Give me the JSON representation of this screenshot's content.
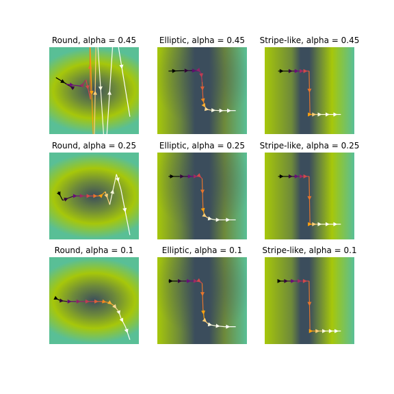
{
  "figure": {
    "colormap_background": [
      "#3b4d5c",
      "#6e8a3a",
      "#a6c70a",
      "#59bf96"
    ],
    "trajectory_gradient": [
      "#000000",
      "#6a0e7a",
      "#d2484a",
      "#fca10f",
      "#fcfbe0",
      "#ffffff"
    ]
  },
  "chart_data": [
    {
      "type": "line",
      "title": "Round, alpha = 0.45",
      "surface": "round",
      "xlim": [
        -1,
        1
      ],
      "ylim": [
        -1,
        1
      ],
      "x": [
        -0.85,
        -0.45,
        -0.62,
        -0.28,
        -0.18,
        -0.08,
        -0.1,
        0.0,
        0.05,
        0.25,
        0.45,
        0.8
      ],
      "y": [
        0.3,
        0.05,
        0.15,
        0.1,
        0.25,
        -0.2,
        1.4,
        -1.6,
        1.6,
        -1.6,
        1.6,
        -0.6
      ]
    },
    {
      "type": "line",
      "title": "Elliptic, alpha = 0.45",
      "surface": "elliptic",
      "xlim": [
        -1,
        1
      ],
      "ylim": [
        -1,
        1
      ],
      "x": [
        -0.75,
        -0.4,
        -0.2,
        -0.06,
        -0.02,
        0.0,
        0.02,
        0.05,
        0.1,
        0.2,
        0.4,
        0.55,
        0.75
      ],
      "y": [
        0.45,
        0.46,
        0.46,
        0.45,
        0.4,
        0.2,
        -0.2,
        -0.35,
        -0.43,
        -0.45,
        -0.46,
        -0.46,
        -0.46
      ]
    },
    {
      "type": "line",
      "title": "Stripe-like, alpha = 0.45",
      "surface": "stripe",
      "xlim": [
        -1,
        1
      ],
      "ylim": [
        -1,
        1
      ],
      "x": [
        -0.7,
        -0.45,
        -0.3,
        -0.18,
        -0.08,
        -0.01,
        0.01,
        0.1,
        0.2,
        0.35,
        0.55,
        0.7
      ],
      "y": [
        0.45,
        0.45,
        0.45,
        0.45,
        0.45,
        0.45,
        -0.55,
        -0.55,
        -0.55,
        -0.55,
        -0.55,
        -0.55
      ]
    },
    {
      "type": "line",
      "title": "Round, alpha = 0.25",
      "surface": "round",
      "xlim": [
        -1,
        1
      ],
      "ylim": [
        -1,
        1
      ],
      "x": [
        -0.8,
        -0.7,
        -0.45,
        -0.3,
        -0.15,
        0.0,
        0.15,
        0.25,
        0.35,
        0.5,
        0.6,
        0.8
      ],
      "y": [
        0.1,
        -0.1,
        0.0,
        0.0,
        0.0,
        0.0,
        0.0,
        0.1,
        -0.2,
        0.5,
        0.15,
        -0.9
      ]
    },
    {
      "type": "line",
      "title": "Elliptic, alpha = 0.25",
      "surface": "elliptic",
      "xlim": [
        -1,
        1
      ],
      "ylim": [
        -1,
        1
      ],
      "x": [
        -0.75,
        -0.5,
        -0.3,
        -0.15,
        -0.05,
        0.0,
        0.02,
        0.05,
        0.15,
        0.3,
        0.5,
        0.75
      ],
      "y": [
        0.45,
        0.45,
        0.45,
        0.45,
        0.45,
        0.4,
        -0.3,
        -0.45,
        -0.52,
        -0.55,
        -0.55,
        -0.55
      ]
    },
    {
      "type": "line",
      "title": "Stripe-like, alpha = 0.25",
      "surface": "stripe",
      "xlim": [
        -1,
        1
      ],
      "ylim": [
        -1,
        1
      ],
      "x": [
        -0.7,
        -0.45,
        -0.3,
        -0.18,
        -0.08,
        -0.01,
        0.01,
        0.1,
        0.2,
        0.35,
        0.55,
        0.7
      ],
      "y": [
        0.45,
        0.45,
        0.45,
        0.45,
        0.45,
        0.45,
        -0.65,
        -0.65,
        -0.65,
        -0.65,
        -0.65,
        -0.65
      ]
    },
    {
      "type": "line",
      "title": "Round, alpha = 0.1",
      "surface": "round",
      "xlim": [
        -1,
        1
      ],
      "ylim": [
        -1,
        1
      ],
      "x": [
        -0.85,
        -0.75,
        -0.6,
        -0.4,
        -0.2,
        0.0,
        0.2,
        0.35,
        0.45,
        0.55,
        0.6,
        0.7,
        0.8
      ],
      "y": [
        0.05,
        0.0,
        -0.02,
        -0.02,
        -0.02,
        -0.02,
        -0.02,
        -0.05,
        -0.12,
        -0.25,
        -0.4,
        -0.6,
        -0.9
      ]
    },
    {
      "type": "line",
      "title": "Elliptic, alpha = 0.1",
      "surface": "elliptic",
      "xlim": [
        -1,
        1
      ],
      "ylim": [
        -1,
        1
      ],
      "x": [
        -0.75,
        -0.55,
        -0.35,
        -0.15,
        -0.05,
        0.0,
        0.02,
        0.05,
        0.15,
        0.3,
        0.5,
        0.75
      ],
      "y": [
        0.45,
        0.45,
        0.45,
        0.45,
        0.44,
        0.4,
        -0.2,
        -0.45,
        -0.55,
        -0.58,
        -0.6,
        -0.6
      ]
    },
    {
      "type": "line",
      "title": "Stripe-like, alpha = 0.1",
      "surface": "stripe",
      "xlim": [
        -1,
        1
      ],
      "ylim": [
        -1,
        1
      ],
      "x": [
        -0.7,
        -0.55,
        -0.4,
        -0.25,
        -0.1,
        -0.01,
        0.01,
        0.15,
        0.3,
        0.45,
        0.6,
        0.7
      ],
      "y": [
        0.45,
        0.45,
        0.45,
        0.45,
        0.45,
        0.45,
        -0.7,
        -0.7,
        -0.7,
        -0.7,
        -0.7,
        -0.7
      ]
    }
  ]
}
